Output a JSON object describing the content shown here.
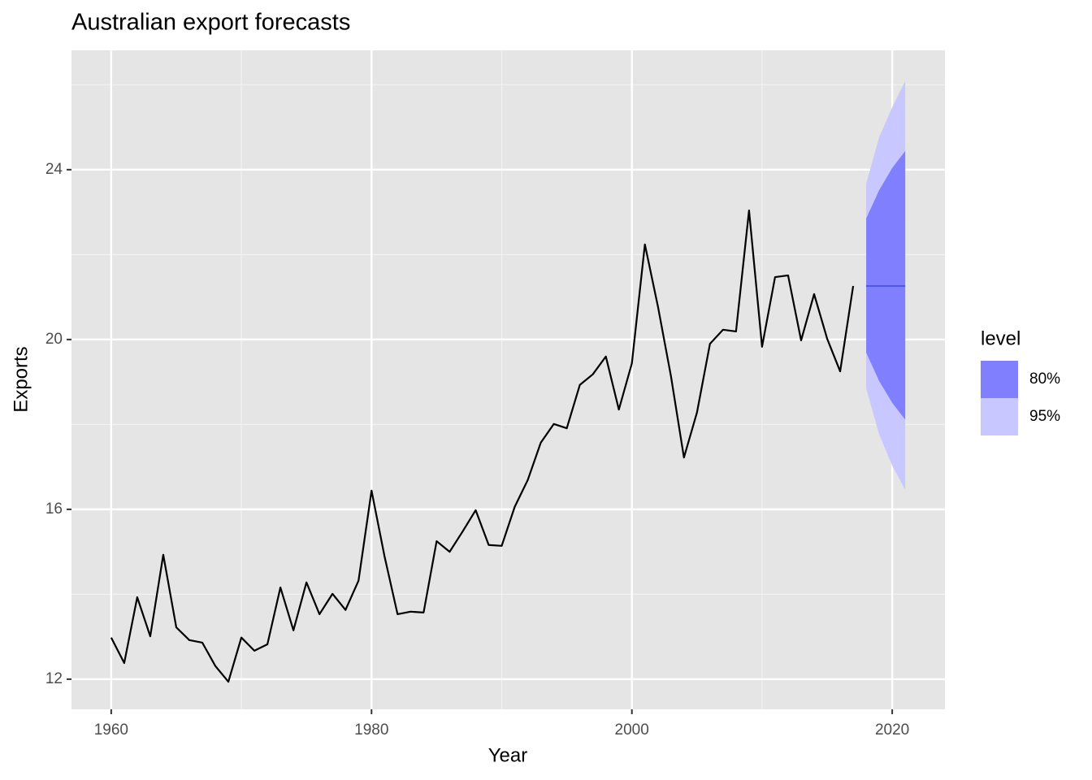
{
  "chart_data": {
    "type": "line",
    "title": "Australian export forecasts",
    "xlabel": "Year",
    "ylabel": "Exports",
    "x": [
      1960,
      1961,
      1962,
      1963,
      1964,
      1965,
      1966,
      1967,
      1968,
      1969,
      1970,
      1971,
      1972,
      1973,
      1974,
      1975,
      1976,
      1977,
      1978,
      1979,
      1980,
      1981,
      1982,
      1983,
      1984,
      1985,
      1986,
      1987,
      1988,
      1989,
      1990,
      1991,
      1992,
      1993,
      1994,
      1995,
      1996,
      1997,
      1998,
      1999,
      2000,
      2001,
      2002,
      2003,
      2004,
      2005,
      2006,
      2007,
      2008,
      2009,
      2010,
      2011,
      2012,
      2013,
      2014,
      2015,
      2016,
      2017
    ],
    "values": [
      12.98,
      12.38,
      13.93,
      13.01,
      14.93,
      13.22,
      12.92,
      12.86,
      12.31,
      11.94,
      12.98,
      12.67,
      12.82,
      14.16,
      13.15,
      14.28,
      13.53,
      14.01,
      13.63,
      14.32,
      16.44,
      14.89,
      13.53,
      13.59,
      13.57,
      15.25,
      15.0,
      15.48,
      15.98,
      15.16,
      15.14,
      16.06,
      16.69,
      17.57,
      18.01,
      17.91,
      18.93,
      19.18,
      19.6,
      18.35,
      19.44,
      22.24,
      20.78,
      19.14,
      17.22,
      18.28,
      19.9,
      20.23,
      20.19,
      23.04,
      19.83,
      21.47,
      21.51,
      19.98,
      21.07,
      20.02,
      19.25,
      21.26
    ],
    "color": "#000000",
    "forecast": {
      "x": [
        2018,
        2019,
        2020,
        2021
      ],
      "mean": [
        21.26,
        21.26,
        21.26,
        21.26
      ],
      "mean_color": "#4f57e6",
      "intervals": [
        {
          "name": "80%",
          "color": "#8080ff",
          "lower": [
            19.69,
            19.02,
            18.51,
            18.11
          ],
          "upper": [
            22.85,
            23.52,
            24.04,
            24.44
          ]
        },
        {
          "name": "95%",
          "color": "#c9c7ff",
          "lower": [
            18.85,
            17.76,
            17.03,
            16.46
          ],
          "upper": [
            23.67,
            24.77,
            25.47,
            26.09
          ]
        }
      ]
    },
    "legend_title": "level",
    "legend_position": "right",
    "xlim": [
      1956.95,
      2024.05
    ],
    "ylim": [
      11.29,
      26.81
    ],
    "xticks": [
      1960,
      1980,
      2000,
      2020
    ],
    "yticks": [
      12,
      16,
      20,
      24
    ],
    "grid": true
  }
}
